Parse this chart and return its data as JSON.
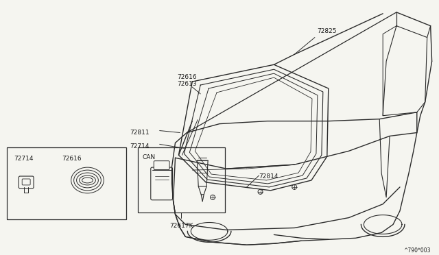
{
  "background_color": "#f5f5f0",
  "diagram_label": "^790*003",
  "inset1_label_72714": "72714",
  "inset1_label_72616": "72616",
  "inset2_title": "72617K",
  "inset2_can": "CAN",
  "line_color": "#2a2a2a",
  "text_color": "#1a1a1a",
  "part_labels": [
    "72825",
    "72616",
    "72613",
    "72811",
    "72714",
    "72814"
  ],
  "fs_label": 6.5
}
